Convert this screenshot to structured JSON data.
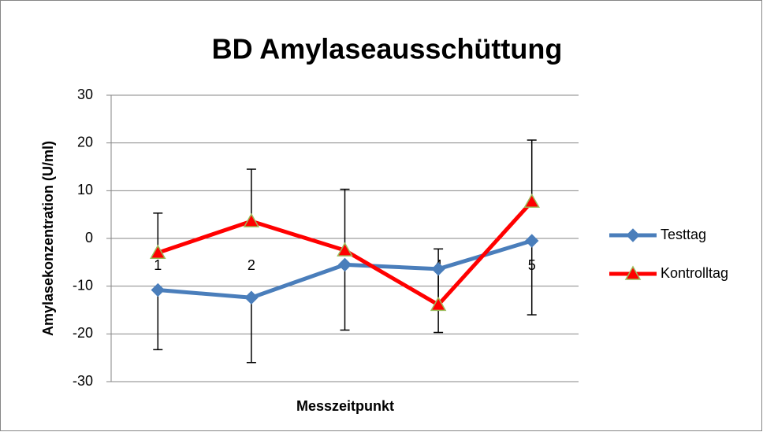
{
  "chart_data": {
    "type": "line",
    "title": "BD Amylaseausschüttung",
    "xlabel": "Messzeitpunkt",
    "ylabel": "Amylasekonzentration (U/ml)",
    "categories": [
      "1",
      "2",
      "3",
      "4",
      "5"
    ],
    "series": [
      {
        "name": "Testtag",
        "color": "#4a7ebb",
        "marker": "diamond",
        "values": [
          -10.8,
          -12.4,
          -5.5,
          -6.4,
          -0.5
        ],
        "errors": [
          12.5,
          13.6,
          13.7,
          13.3,
          15.5
        ],
        "error_direction": "minus"
      },
      {
        "name": "Kontrolltag",
        "color": "#ff0000",
        "marker": "triangle",
        "values": [
          -3,
          3.6,
          -2.5,
          -13.9,
          7.7
        ],
        "errors": [
          8.3,
          10.9,
          12.8,
          11.7,
          12.9
        ],
        "error_direction": "plus"
      }
    ],
    "ylim": [
      -30,
      30
    ],
    "yticks": [
      -30,
      -20,
      -10,
      0,
      10,
      20,
      30
    ],
    "grid": true,
    "legend": "right"
  }
}
